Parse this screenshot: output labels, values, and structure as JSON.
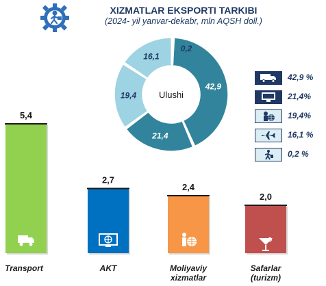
{
  "header": {
    "title": "XIZMATLAR EKSPORTI TARKIBI",
    "subtitle": "(2024- yil yanvar-dekabr, mln AQSH doll.)"
  },
  "colors": {
    "bar_transport": "#92d050",
    "bar_akt": "#0070c0",
    "bar_moliya": "#f79646",
    "bar_safar": "#c0504d",
    "donut_dark": "#31849b",
    "donut_light": "#9dd3e2",
    "navy": "#1f3864"
  },
  "icons": [
    "truck-icon",
    "monitor-icon",
    "finance-icon",
    "airplane-icon",
    "traveler-icon"
  ],
  "chart_data": [
    {
      "type": "bar",
      "categories": [
        "Transport",
        "AKT",
        "Moliyaviy xizmatlar",
        "Safarlar (turizm)"
      ],
      "category_lines": [
        [
          "Transport"
        ],
        [
          "AKT"
        ],
        [
          "Moliyaviy",
          "xizmatlar"
        ],
        [
          "Safarlar",
          "(turizm)"
        ]
      ],
      "values": [
        5.4,
        2.7,
        2.4,
        2.0
      ],
      "value_labels": [
        "5,4",
        "2,7",
        "2,4",
        "2,0"
      ],
      "ylim": [
        0,
        6
      ]
    },
    {
      "type": "pie",
      "donut": true,
      "center_label": "Ulushi",
      "values": [
        42.9,
        21.4,
        19.4,
        16.1,
        0.2
      ],
      "value_labels": [
        "42,9",
        "21,4",
        "19,4",
        "16,1",
        "0,2"
      ],
      "legend_labels": [
        "42,9 %",
        "21,4%",
        "19,4%",
        "16,1 %",
        "0,2 %"
      ],
      "legend_position": "right"
    }
  ]
}
